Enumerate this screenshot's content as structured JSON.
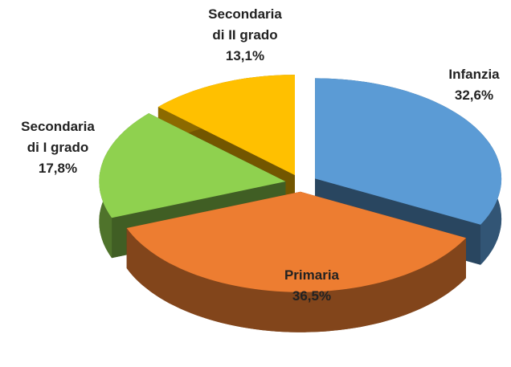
{
  "chart_data": {
    "type": "pie",
    "categories": [
      "Infanzia",
      "Primaria",
      "Secondaria di I grado",
      "Secondaria di II grado"
    ],
    "values": [
      32.6,
      36.5,
      17.8,
      13.1
    ],
    "value_labels": [
      "32,6%",
      "36,5%",
      "17,8%",
      "13,1%"
    ],
    "colors": [
      "#5b9bd5",
      "#ed7d31",
      "#8fd14f",
      "#ffc000"
    ],
    "exploded": true,
    "three_d": true
  }
}
